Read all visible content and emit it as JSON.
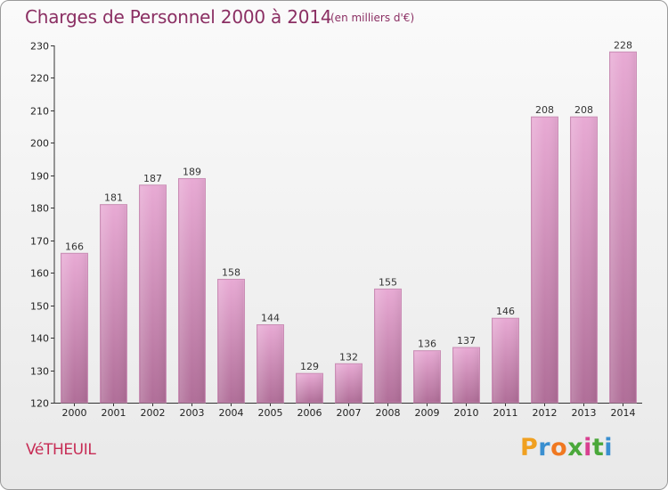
{
  "header": {
    "title": "Charges de Personnel 2000 à 2014",
    "subtitle": "(en milliers d'€)"
  },
  "footer": {
    "commune": "VéTHEUIL",
    "logo": {
      "letters": [
        "P",
        "r",
        "o",
        "x",
        "i",
        "t",
        "i"
      ],
      "colors": [
        "#f0a020",
        "#3a8fd0",
        "#f07820",
        "#4aa83a",
        "#d84090",
        "#4aa83a",
        "#3a8fd0"
      ]
    }
  },
  "colors": {
    "bar_top": "#e8aad4",
    "bar_bottom": "#b06e98",
    "bar_edge": "#c98fb5",
    "title": "#8b2f63",
    "commune": "#c72c55"
  },
  "chart_data": {
    "type": "bar",
    "categories": [
      "2000",
      "2001",
      "2002",
      "2003",
      "2004",
      "2005",
      "2006",
      "2007",
      "2008",
      "2009",
      "2010",
      "2011",
      "2012",
      "2013",
      "2014"
    ],
    "values": [
      166,
      181,
      187,
      189,
      158,
      144,
      129,
      132,
      155,
      136,
      137,
      146,
      208,
      208,
      228
    ],
    "data_labels": [
      "166",
      "181",
      "187",
      "189",
      "158",
      "144",
      "129",
      "132",
      "155",
      "136",
      "137",
      "146",
      "208",
      "208",
      "228"
    ],
    "ylim": [
      120,
      230
    ],
    "yticks": [
      120,
      130,
      140,
      150,
      160,
      170,
      180,
      190,
      200,
      210,
      220,
      230
    ],
    "ytick_labels": [
      "120",
      "130",
      "140",
      "150",
      "160",
      "170",
      "180",
      "190",
      "200",
      "210",
      "220",
      "230"
    ],
    "grid": false
  }
}
